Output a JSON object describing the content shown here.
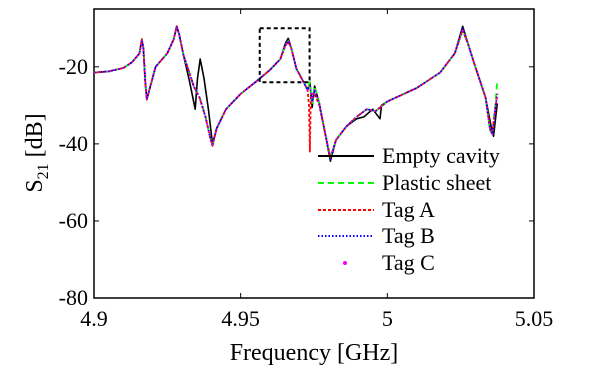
{
  "chart_data": {
    "type": "line",
    "xlabel": "Frequency [GHz]",
    "ylabel_main": "S",
    "ylabel_sub": "21",
    "ylabel_unit": "[dB]",
    "xlim": [
      4.9,
      5.05
    ],
    "ylim": [
      -80,
      -5
    ],
    "x_ticks": [
      4.9,
      4.95,
      5.0,
      5.05
    ],
    "x_tick_labels": [
      "4.9",
      "4.95",
      "5",
      "5.05"
    ],
    "y_ticks": [
      -80,
      -60,
      -40,
      -20
    ],
    "y_tick_labels": [
      "-80",
      "-60",
      "-40",
      "-20"
    ],
    "grid": false,
    "legend_position": "bottom-right",
    "highlight_box": {
      "x": [
        4.9565,
        4.9735
      ],
      "y": [
        -24,
        -10
      ]
    },
    "series": [
      {
        "name": "Empty cavity",
        "color": "#000000",
        "dash": "solid",
        "points": [
          [
            4.9,
            -21.5
          ],
          [
            4.905,
            -21.2
          ],
          [
            4.91,
            -20.3
          ],
          [
            4.913,
            -18.8
          ],
          [
            4.9155,
            -16.5
          ],
          [
            4.9163,
            -12.8
          ],
          [
            4.9168,
            -15
          ],
          [
            4.9175,
            -24
          ],
          [
            4.918,
            -28.5
          ],
          [
            4.9185,
            -27
          ],
          [
            4.921,
            -20
          ],
          [
            4.925,
            -16.5
          ],
          [
            4.9272,
            -12.8
          ],
          [
            4.9282,
            -9.5
          ],
          [
            4.929,
            -11.5
          ],
          [
            4.9305,
            -17
          ],
          [
            4.9325,
            -23.5
          ],
          [
            4.9345,
            -31
          ],
          [
            4.9353,
            -23
          ],
          [
            4.9362,
            -18
          ],
          [
            4.9375,
            -23
          ],
          [
            4.939,
            -31
          ],
          [
            4.9404,
            -40
          ],
          [
            4.9418,
            -36
          ],
          [
            4.945,
            -31
          ],
          [
            4.95,
            -27
          ],
          [
            4.955,
            -24
          ],
          [
            4.96,
            -20.8
          ],
          [
            4.9635,
            -18
          ],
          [
            4.9652,
            -14
          ],
          [
            4.9662,
            -12.6
          ],
          [
            4.9672,
            -15
          ],
          [
            4.969,
            -20.5
          ],
          [
            4.9715,
            -24
          ],
          [
            4.9728,
            -26
          ],
          [
            4.9736,
            -24
          ],
          [
            4.9744,
            -30.5
          ],
          [
            4.9752,
            -25
          ],
          [
            4.9768,
            -29.5
          ],
          [
            4.979,
            -38
          ],
          [
            4.9806,
            -44.5
          ],
          [
            4.9825,
            -39
          ],
          [
            4.986,
            -35.5
          ],
          [
            4.9895,
            -33.5
          ],
          [
            4.992,
            -33
          ],
          [
            4.995,
            -31
          ],
          [
            4.9975,
            -33.5
          ],
          [
            4.998,
            -30
          ],
          [
            5.0,
            -29
          ],
          [
            5.01,
            -25.5
          ],
          [
            5.018,
            -21.5
          ],
          [
            5.023,
            -16.5
          ],
          [
            5.0257,
            -9.5
          ],
          [
            5.0275,
            -14
          ],
          [
            5.03,
            -20
          ],
          [
            5.0335,
            -28
          ],
          [
            5.0355,
            -36
          ],
          [
            5.0362,
            -38
          ],
          [
            5.0368,
            -34
          ],
          [
            5.0375,
            -29.5
          ]
        ]
      },
      {
        "name": "Plastic sheet",
        "color": "#00ff00",
        "dash": "6,4",
        "points": [
          [
            4.9,
            -21.5
          ],
          [
            4.905,
            -21.2
          ],
          [
            4.91,
            -20.3
          ],
          [
            4.913,
            -18.8
          ],
          [
            4.9155,
            -16.5
          ],
          [
            4.9163,
            -13
          ],
          [
            4.9168,
            -15
          ],
          [
            4.9175,
            -24
          ],
          [
            4.918,
            -28.5
          ],
          [
            4.9185,
            -27
          ],
          [
            4.921,
            -20
          ],
          [
            4.925,
            -16.5
          ],
          [
            4.9272,
            -12.8
          ],
          [
            4.9282,
            -9.5
          ],
          [
            4.929,
            -11.5
          ],
          [
            4.9305,
            -17
          ],
          [
            4.9325,
            -21.5
          ],
          [
            4.934,
            -25
          ],
          [
            4.936,
            -28
          ],
          [
            4.938,
            -33
          ],
          [
            4.9395,
            -38
          ],
          [
            4.9404,
            -40.5
          ],
          [
            4.9418,
            -36
          ],
          [
            4.945,
            -31
          ],
          [
            4.95,
            -27
          ],
          [
            4.955,
            -24
          ],
          [
            4.96,
            -20.8
          ],
          [
            4.9635,
            -18
          ],
          [
            4.9652,
            -14.5
          ],
          [
            4.9662,
            -13.3
          ],
          [
            4.9672,
            -15
          ],
          [
            4.969,
            -20.5
          ],
          [
            4.9715,
            -24
          ],
          [
            4.9728,
            -26
          ],
          [
            4.9736,
            -24
          ],
          [
            4.9744,
            -30
          ],
          [
            4.9752,
            -25
          ],
          [
            4.9768,
            -29.5
          ],
          [
            4.979,
            -38
          ],
          [
            4.9806,
            -43.5
          ],
          [
            4.9825,
            -39
          ],
          [
            4.986,
            -35.5
          ],
          [
            4.9895,
            -33
          ],
          [
            4.993,
            -31
          ],
          [
            4.996,
            -31.5
          ],
          [
            5.0,
            -29
          ],
          [
            5.01,
            -25.5
          ],
          [
            5.018,
            -21.5
          ],
          [
            5.023,
            -16.5
          ],
          [
            5.0257,
            -10.5
          ],
          [
            5.0275,
            -14
          ],
          [
            5.03,
            -20
          ],
          [
            5.0335,
            -28
          ],
          [
            5.035,
            -36.5
          ],
          [
            5.0358,
            -37.5
          ],
          [
            5.0368,
            -30
          ],
          [
            5.0375,
            -23.5
          ]
        ]
      },
      {
        "name": "Tag A",
        "color": "#ff0000",
        "dash": "3,2",
        "points": [
          [
            4.9,
            -21.5
          ],
          [
            4.905,
            -21.2
          ],
          [
            4.91,
            -20.3
          ],
          [
            4.913,
            -18.8
          ],
          [
            4.9155,
            -16.5
          ],
          [
            4.9163,
            -13
          ],
          [
            4.9168,
            -15
          ],
          [
            4.9175,
            -24
          ],
          [
            4.918,
            -28.5
          ],
          [
            4.9185,
            -27
          ],
          [
            4.921,
            -20
          ],
          [
            4.925,
            -16.5
          ],
          [
            4.9272,
            -12.8
          ],
          [
            4.9282,
            -9.5
          ],
          [
            4.929,
            -11.5
          ],
          [
            4.9305,
            -17
          ],
          [
            4.9325,
            -21.5
          ],
          [
            4.934,
            -25
          ],
          [
            4.936,
            -28
          ],
          [
            4.938,
            -33
          ],
          [
            4.9395,
            -38
          ],
          [
            4.9404,
            -40.5
          ],
          [
            4.9418,
            -36
          ],
          [
            4.945,
            -31
          ],
          [
            4.95,
            -27
          ],
          [
            4.955,
            -24
          ],
          [
            4.96,
            -20.8
          ],
          [
            4.9635,
            -18
          ],
          [
            4.9652,
            -14.5
          ],
          [
            4.9662,
            -13.5
          ],
          [
            4.9672,
            -15
          ],
          [
            4.969,
            -20.5
          ],
          [
            4.9715,
            -24
          ],
          [
            4.9728,
            -26
          ],
          [
            4.9733,
            -30
          ],
          [
            4.9736,
            -42
          ],
          [
            4.9739,
            -27
          ],
          [
            4.9752,
            -27
          ],
          [
            4.9768,
            -30
          ],
          [
            4.979,
            -38
          ],
          [
            4.9806,
            -43.5
          ],
          [
            4.9825,
            -39
          ],
          [
            4.986,
            -35.5
          ],
          [
            4.9895,
            -33
          ],
          [
            4.993,
            -31
          ],
          [
            4.996,
            -31.5
          ],
          [
            5.0,
            -29
          ],
          [
            5.01,
            -25.5
          ],
          [
            5.018,
            -21.5
          ],
          [
            5.023,
            -16.5
          ],
          [
            5.0257,
            -10.5
          ],
          [
            5.0275,
            -14
          ],
          [
            5.03,
            -20
          ],
          [
            5.0335,
            -28
          ],
          [
            5.035,
            -36
          ],
          [
            5.0358,
            -37
          ],
          [
            5.0368,
            -31
          ],
          [
            5.0375,
            -27
          ]
        ]
      },
      {
        "name": "Tag B",
        "color": "#0000ff",
        "dash": "1.5,2",
        "points": [
          [
            4.9,
            -21.5
          ],
          [
            4.905,
            -21.2
          ],
          [
            4.91,
            -20.3
          ],
          [
            4.913,
            -18.8
          ],
          [
            4.9155,
            -16.5
          ],
          [
            4.9163,
            -13
          ],
          [
            4.9168,
            -15
          ],
          [
            4.9175,
            -24
          ],
          [
            4.918,
            -28.5
          ],
          [
            4.9185,
            -27
          ],
          [
            4.921,
            -20
          ],
          [
            4.925,
            -16.5
          ],
          [
            4.9272,
            -12.8
          ],
          [
            4.9282,
            -9.5
          ],
          [
            4.929,
            -11.5
          ],
          [
            4.9305,
            -17
          ],
          [
            4.9325,
            -21.5
          ],
          [
            4.934,
            -25
          ],
          [
            4.936,
            -28
          ],
          [
            4.938,
            -33
          ],
          [
            4.9395,
            -38
          ],
          [
            4.9404,
            -40.5
          ],
          [
            4.9418,
            -36
          ],
          [
            4.945,
            -31
          ],
          [
            4.95,
            -27
          ],
          [
            4.955,
            -24
          ],
          [
            4.96,
            -20.8
          ],
          [
            4.9635,
            -18
          ],
          [
            4.9652,
            -14.5
          ],
          [
            4.9662,
            -13.3
          ],
          [
            4.9672,
            -15
          ],
          [
            4.969,
            -20.5
          ],
          [
            4.9715,
            -24
          ],
          [
            4.9728,
            -26
          ],
          [
            4.9736,
            -25
          ],
          [
            4.9744,
            -29
          ],
          [
            4.9752,
            -26
          ],
          [
            4.9768,
            -29.5
          ],
          [
            4.979,
            -38
          ],
          [
            4.9806,
            -44
          ],
          [
            4.9825,
            -39
          ],
          [
            4.986,
            -35.5
          ],
          [
            4.9895,
            -33
          ],
          [
            4.993,
            -31
          ],
          [
            4.996,
            -31.5
          ],
          [
            5.0,
            -29
          ],
          [
            5.01,
            -25.5
          ],
          [
            5.018,
            -21.5
          ],
          [
            5.023,
            -16.5
          ],
          [
            5.0257,
            -10
          ],
          [
            5.0275,
            -14
          ],
          [
            5.03,
            -20
          ],
          [
            5.0335,
            -28
          ],
          [
            5.035,
            -36
          ],
          [
            5.0358,
            -37.5
          ],
          [
            5.0368,
            -31
          ],
          [
            5.0375,
            -27
          ]
        ]
      },
      {
        "name": "Tag C",
        "color": "#ff00ff",
        "dash": "1,3",
        "points": [
          [
            4.9,
            -21.5
          ],
          [
            4.905,
            -21.2
          ],
          [
            4.91,
            -20.3
          ],
          [
            4.913,
            -18.8
          ],
          [
            4.9155,
            -16.5
          ],
          [
            4.9163,
            -13
          ],
          [
            4.9168,
            -15
          ],
          [
            4.9175,
            -24
          ],
          [
            4.918,
            -28.5
          ],
          [
            4.9185,
            -27
          ],
          [
            4.921,
            -20
          ],
          [
            4.925,
            -16.5
          ],
          [
            4.9272,
            -12.8
          ],
          [
            4.9282,
            -9.5
          ],
          [
            4.929,
            -11.5
          ],
          [
            4.9305,
            -17
          ],
          [
            4.9325,
            -21.5
          ],
          [
            4.934,
            -25
          ],
          [
            4.936,
            -28
          ],
          [
            4.938,
            -33
          ],
          [
            4.9395,
            -38
          ],
          [
            4.9404,
            -40.5
          ],
          [
            4.9418,
            -36
          ],
          [
            4.945,
            -31
          ],
          [
            4.95,
            -27
          ],
          [
            4.955,
            -24
          ],
          [
            4.96,
            -20.8
          ],
          [
            4.9635,
            -18
          ],
          [
            4.9652,
            -14.5
          ],
          [
            4.9662,
            -13.4
          ],
          [
            4.9672,
            -15
          ],
          [
            4.969,
            -20.5
          ],
          [
            4.9715,
            -24
          ],
          [
            4.9728,
            -26
          ],
          [
            4.9736,
            -25
          ],
          [
            4.9744,
            -29
          ],
          [
            4.9752,
            -26
          ],
          [
            4.9768,
            -29.5
          ],
          [
            4.979,
            -38
          ],
          [
            4.9806,
            -43.5
          ],
          [
            4.9825,
            -39
          ],
          [
            4.986,
            -35.5
          ],
          [
            4.9895,
            -33
          ],
          [
            4.993,
            -31
          ],
          [
            4.996,
            -31.5
          ],
          [
            5.0,
            -29
          ],
          [
            5.01,
            -25.5
          ],
          [
            5.018,
            -21.5
          ],
          [
            5.023,
            -16.5
          ],
          [
            5.0257,
            -10.2
          ],
          [
            5.0275,
            -14
          ],
          [
            5.03,
            -20
          ],
          [
            5.0335,
            -28
          ],
          [
            5.035,
            -36
          ],
          [
            5.0358,
            -37.5
          ],
          [
            5.0368,
            -31
          ],
          [
            5.0375,
            -27
          ]
        ]
      }
    ]
  }
}
